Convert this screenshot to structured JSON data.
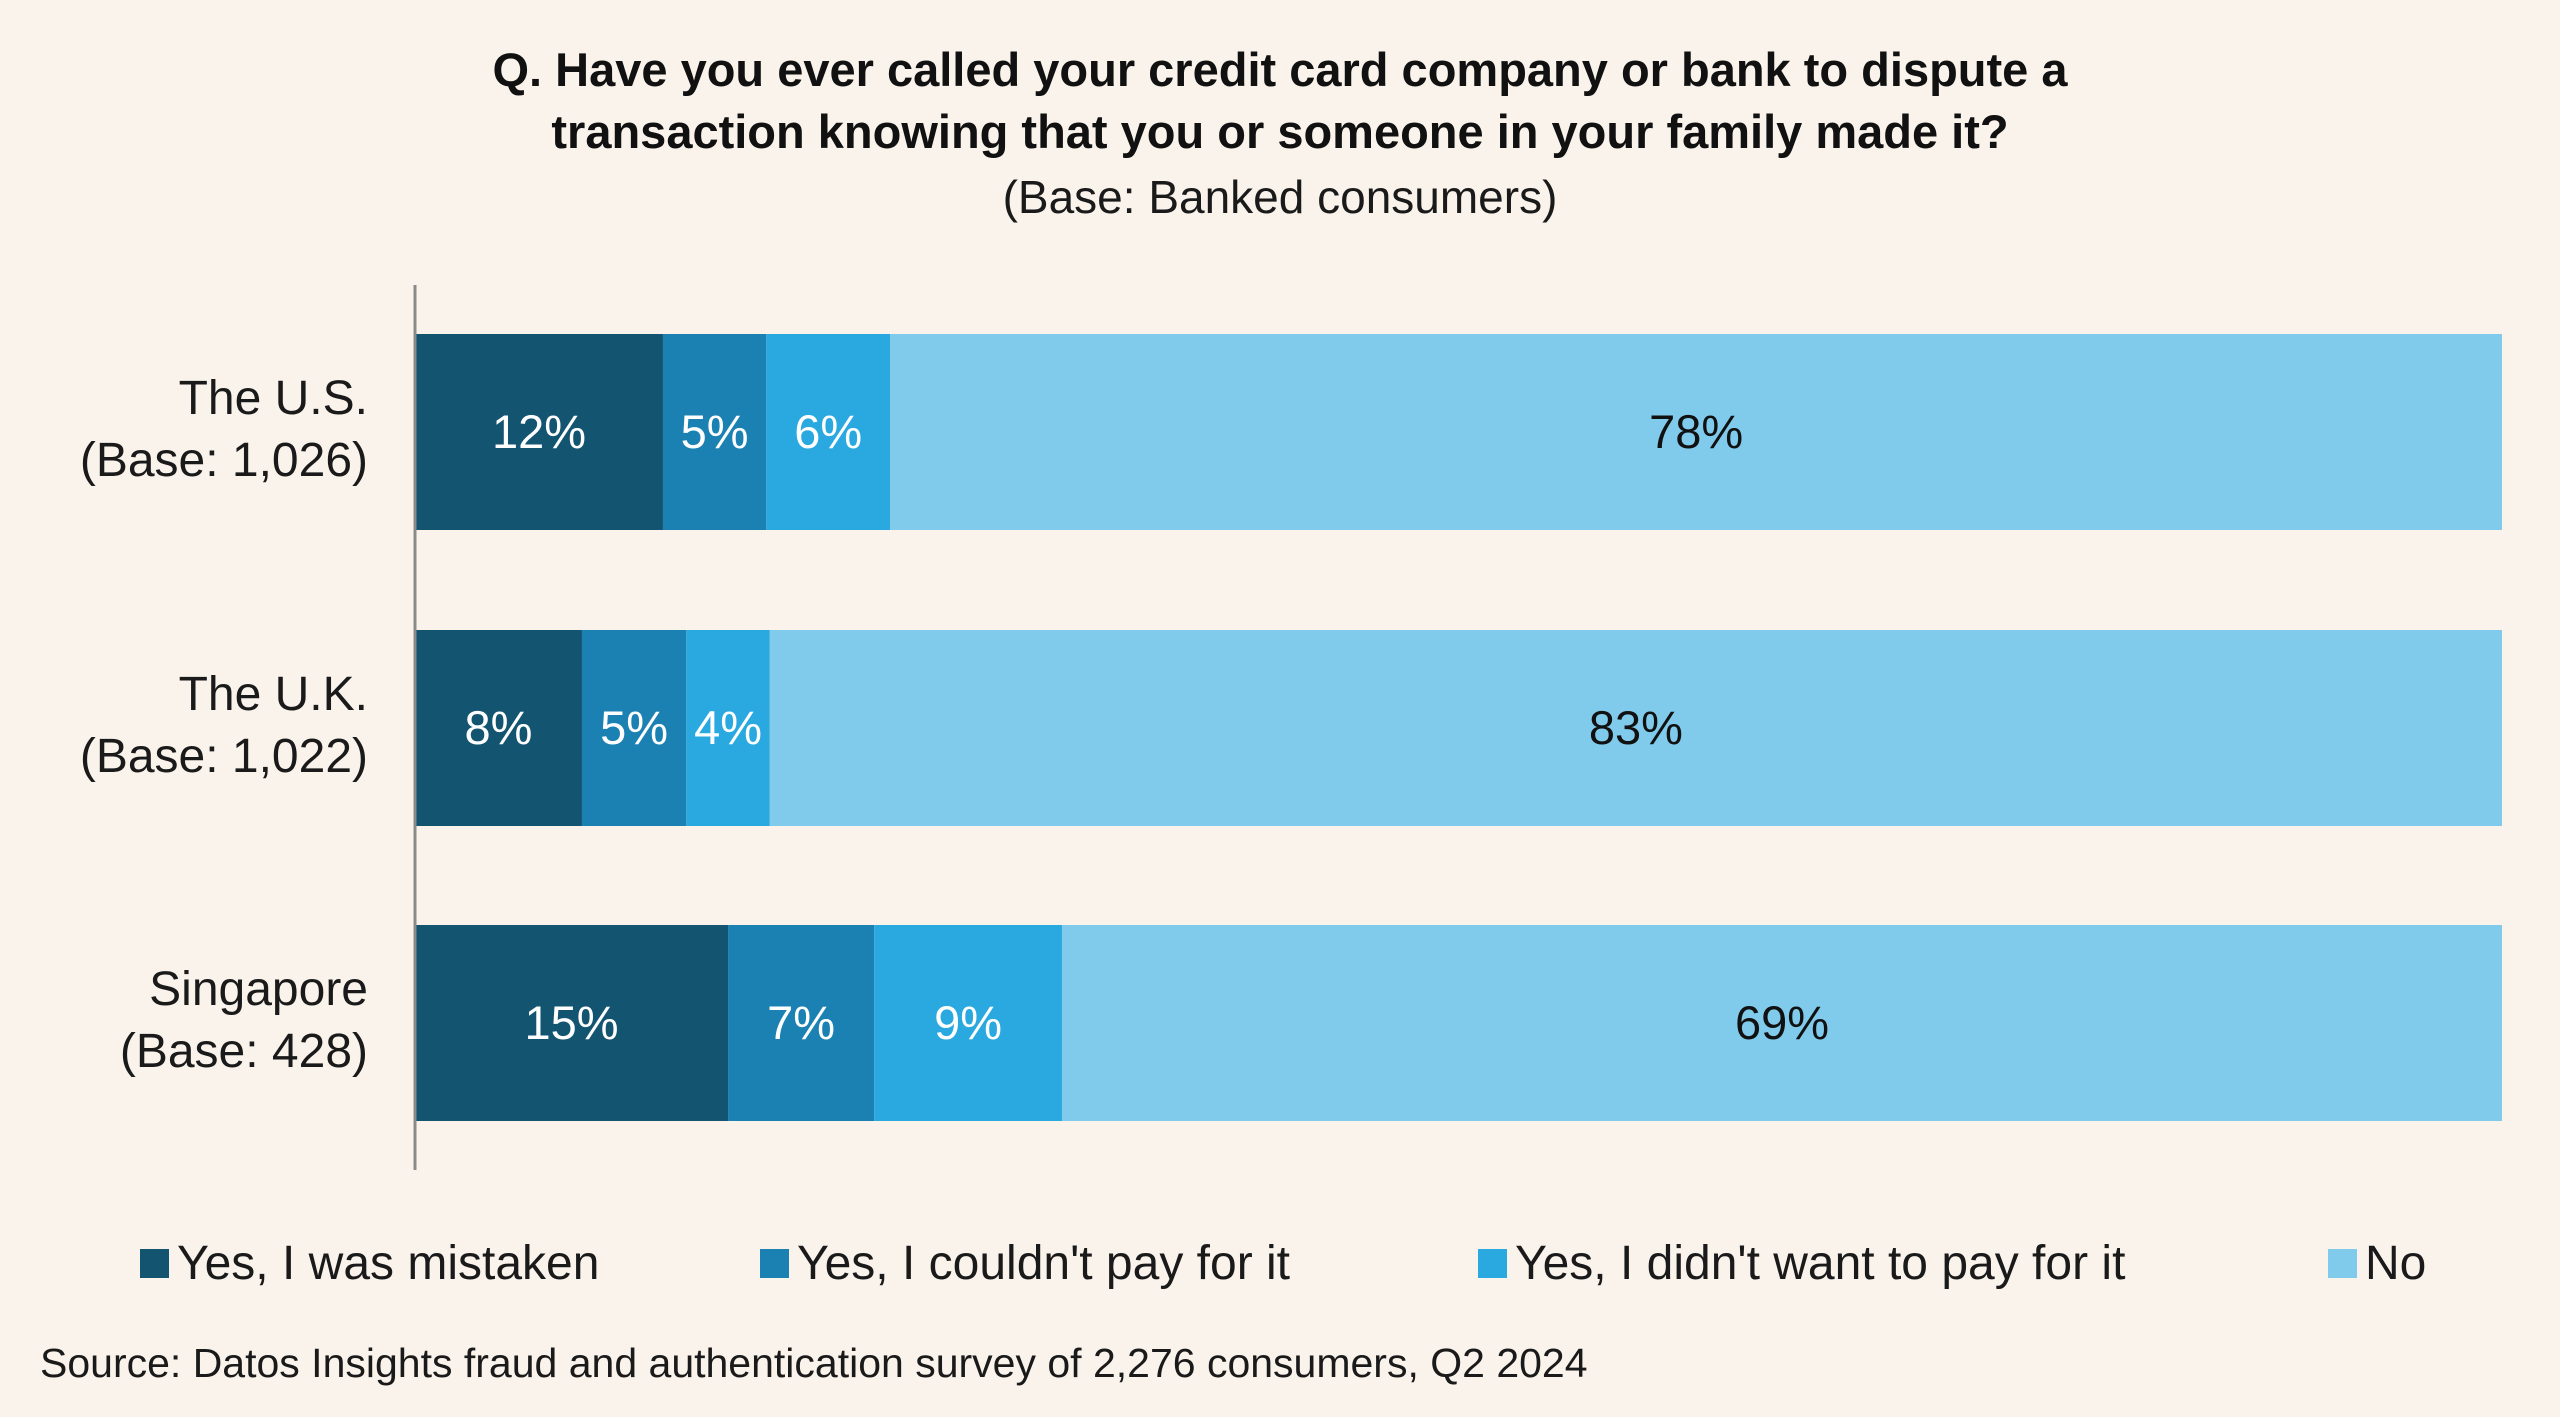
{
  "chart_data": {
    "type": "bar",
    "orientation": "horizontal",
    "stacked": true,
    "title": "Q. Have you ever called your credit card company or bank to dispute a transaction knowing that you or someone in your family made it?",
    "title_lines": [
      "Q. Have you ever called your credit card company or bank to dispute a",
      "transaction knowing that you or someone in your family made it?"
    ],
    "subtitle": "(Base: Banked consumers)",
    "xlabel": "",
    "ylabel": "",
    "xlim": [
      0,
      100
    ],
    "grid": false,
    "legend_position": "bottom",
    "categories": [
      {
        "name": "The U.S.",
        "base": "(Base: 1,026)"
      },
      {
        "name": "The U.K.",
        "base": "(Base: 1,022)"
      },
      {
        "name": "Singapore",
        "base": "(Base: 428)"
      }
    ],
    "series": [
      {
        "name": "Yes, I was mistaken",
        "color": "#135471",
        "label_color": "#ffffff",
        "values": [
          12,
          8,
          15
        ]
      },
      {
        "name": "Yes, I couldn't pay for it",
        "color": "#1b81b3",
        "label_color": "#ffffff",
        "values": [
          5,
          5,
          7
        ]
      },
      {
        "name": "Yes, I didn't want to pay for it",
        "color": "#2aa8e0",
        "label_color": "#ffffff",
        "values": [
          6,
          4,
          9
        ]
      },
      {
        "name": "No",
        "color": "#80cbec",
        "label_color": "#111111",
        "values": [
          78,
          83,
          69
        ]
      }
    ],
    "value_suffix": "%"
  },
  "source": "Source: Datos Insights fraud and authentication survey of 2,276 consumers, Q2 2024"
}
